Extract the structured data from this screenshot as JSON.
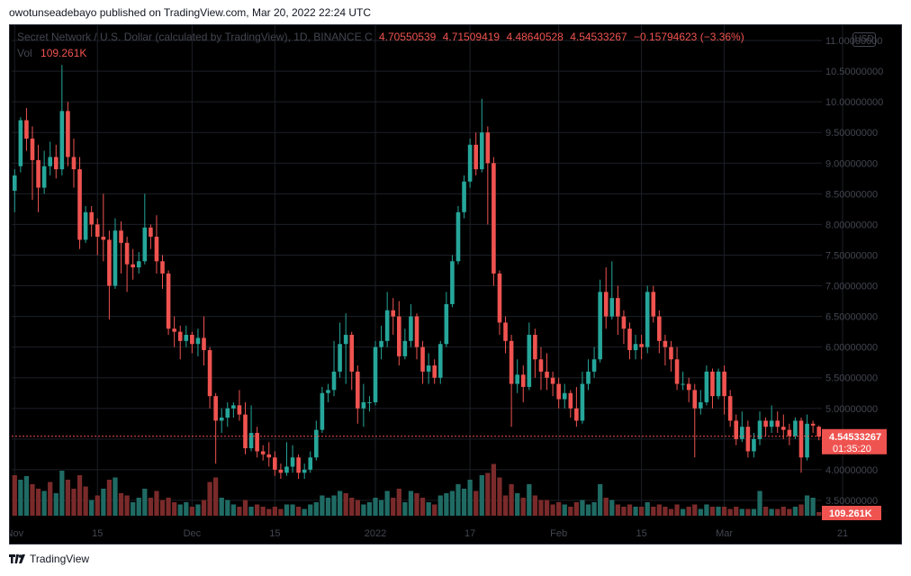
{
  "header": {
    "published_line": "owotunseadebayo published on TradingView.com, Mar 20, 2022 22:24 UTC"
  },
  "legend": {
    "symbol": "Secret Network / U.S. Dollar (calculated by TradingView), 1D, BINANCE",
    "marker": "C",
    "open": "4.70550539",
    "high": "4.71509419",
    "low": "4.48640528",
    "close": "4.54533267",
    "change": "−0.15794623 (−3.36%)",
    "vol_label": "Vol",
    "vol_value": "109.261K"
  },
  "currency_button": "USD",
  "price_tag": {
    "price": "4.54533267",
    "countdown": "01:35:20"
  },
  "volume_tag": "109.261K",
  "footer": {
    "brand": "TradingView"
  },
  "colors": {
    "up": "#26a69a",
    "down": "#ef5350",
    "up_vol": "#1f6b64",
    "down_vol": "#7a2a2a",
    "grid": "#1c1f27"
  },
  "chart_data": {
    "type": "candlestick",
    "interval": "1D",
    "exchange": "BINANCE",
    "y_axis": {
      "range": [
        3.25,
        11.25
      ],
      "ticks": [
        "11.00000000",
        "10.50000000",
        "10.00000000",
        "9.50000000",
        "9.00000000",
        "8.50000000",
        "8.00000000",
        "7.50000000",
        "7.00000000",
        "6.50000000",
        "6.00000000",
        "5.50000000",
        "5.00000000",
        "4.50000000",
        "4.00000000",
        "3.50000000"
      ]
    },
    "x_ticks": [
      {
        "label": "Nov",
        "index": 0
      },
      {
        "label": "15",
        "index": 14
      },
      {
        "label": "Dec",
        "index": 30
      },
      {
        "label": "15",
        "index": 44
      },
      {
        "label": "2022",
        "index": 61
      },
      {
        "label": "17",
        "index": 77
      },
      {
        "label": "Feb",
        "index": 92
      },
      {
        "label": "15",
        "index": 106
      },
      {
        "label": "Mar",
        "index": 120
      },
      {
        "label": "21",
        "index": 140
      }
    ],
    "last_price": 4.54533267,
    "candles": [
      [
        8.55,
        8.8,
        8.2,
        8.9
      ],
      [
        8.95,
        9.7,
        8.85,
        9.75
      ],
      [
        9.7,
        9.4,
        9.2,
        9.9
      ],
      [
        9.4,
        9.05,
        8.4,
        9.6
      ],
      [
        9.05,
        8.6,
        8.2,
        9.3
      ],
      [
        8.6,
        8.95,
        8.5,
        9.2
      ],
      [
        8.95,
        9.1,
        8.8,
        9.35
      ],
      [
        9.1,
        8.9,
        8.75,
        9.3
      ],
      [
        8.9,
        9.85,
        8.8,
        10.6
      ],
      [
        9.85,
        9.1,
        8.95,
        10.0
      ],
      [
        9.1,
        8.9,
        8.6,
        9.4
      ],
      [
        8.9,
        7.75,
        7.6,
        9.1
      ],
      [
        7.75,
        8.2,
        7.7,
        8.3
      ],
      [
        8.2,
        8.0,
        7.8,
        8.3
      ],
      [
        8.0,
        7.8,
        7.5,
        8.1
      ],
      [
        7.8,
        7.75,
        7.4,
        8.5
      ],
      [
        7.75,
        7.0,
        6.45,
        7.9
      ],
      [
        7.0,
        7.9,
        6.95,
        8.1
      ],
      [
        7.9,
        7.7,
        7.2,
        8.05
      ],
      [
        7.7,
        7.35,
        6.9,
        7.8
      ],
      [
        7.35,
        7.3,
        7.1,
        7.6
      ],
      [
        7.3,
        7.4,
        7.2,
        7.55
      ],
      [
        7.4,
        7.95,
        7.35,
        8.5
      ],
      [
        7.95,
        7.8,
        7.6,
        8.0
      ],
      [
        7.8,
        7.4,
        7.2,
        8.15
      ],
      [
        7.4,
        7.2,
        6.95,
        7.5
      ],
      [
        7.2,
        6.3,
        6.2,
        7.25
      ],
      [
        6.3,
        6.25,
        6.0,
        6.5
      ],
      [
        6.25,
        6.1,
        5.8,
        6.35
      ],
      [
        6.1,
        6.2,
        6.0,
        6.35
      ],
      [
        6.2,
        6.05,
        5.9,
        6.25
      ],
      [
        6.05,
        6.15,
        5.85,
        6.3
      ],
      [
        6.15,
        5.95,
        5.7,
        6.5
      ],
      [
        5.95,
        5.2,
        5.0,
        6.0
      ],
      [
        5.2,
        4.8,
        4.1,
        5.25
      ],
      [
        4.8,
        4.85,
        4.6,
        5.0
      ],
      [
        4.85,
        5.0,
        4.7,
        5.1
      ],
      [
        5.0,
        5.05,
        4.85,
        5.1
      ],
      [
        5.05,
        4.9,
        4.8,
        5.3
      ],
      [
        4.9,
        4.35,
        4.25,
        5.1
      ],
      [
        4.35,
        4.6,
        4.3,
        5.05
      ],
      [
        4.6,
        4.3,
        4.2,
        4.7
      ],
      [
        4.3,
        4.25,
        4.15,
        4.4
      ],
      [
        4.25,
        4.2,
        4.05,
        4.45
      ],
      [
        4.2,
        4.0,
        3.9,
        4.3
      ],
      [
        4.0,
        3.95,
        3.85,
        4.1
      ],
      [
        3.95,
        4.05,
        3.9,
        4.45
      ],
      [
        4.05,
        4.2,
        3.95,
        4.4
      ],
      [
        4.2,
        3.95,
        3.85,
        4.25
      ],
      [
        3.95,
        4.0,
        3.85,
        4.1
      ],
      [
        4.0,
        4.2,
        3.95,
        4.3
      ],
      [
        4.2,
        4.65,
        4.15,
        4.8
      ],
      [
        4.65,
        5.25,
        4.6,
        5.35
      ],
      [
        5.25,
        5.3,
        5.1,
        5.4
      ],
      [
        5.3,
        5.6,
        5.2,
        6.1
      ],
      [
        5.6,
        6.05,
        5.5,
        6.4
      ],
      [
        6.05,
        6.2,
        5.4,
        6.55
      ],
      [
        6.2,
        5.6,
        5.3,
        6.25
      ],
      [
        5.6,
        5.0,
        4.75,
        5.7
      ],
      [
        5.0,
        5.1,
        4.7,
        5.4
      ],
      [
        5.1,
        5.1,
        4.95,
        5.2
      ],
      [
        5.1,
        6.0,
        5.05,
        6.1
      ],
      [
        6.0,
        6.1,
        5.8,
        6.35
      ],
      [
        6.1,
        6.6,
        6.0,
        6.9
      ],
      [
        6.6,
        6.5,
        6.2,
        6.8
      ],
      [
        6.5,
        5.85,
        5.7,
        6.75
      ],
      [
        5.85,
        6.1,
        5.8,
        6.3
      ],
      [
        6.1,
        6.5,
        6.0,
        6.7
      ],
      [
        6.5,
        6.0,
        5.8,
        6.55
      ],
      [
        6.0,
        5.6,
        5.4,
        6.1
      ],
      [
        5.6,
        5.7,
        5.4,
        5.9
      ],
      [
        5.7,
        5.5,
        5.4,
        5.8
      ],
      [
        5.5,
        6.05,
        5.4,
        6.1
      ],
      [
        6.05,
        6.7,
        6.0,
        6.9
      ],
      [
        6.7,
        7.4,
        6.65,
        7.5
      ],
      [
        7.4,
        8.2,
        7.35,
        8.3
      ],
      [
        8.2,
        8.7,
        8.1,
        8.8
      ],
      [
        8.7,
        9.3,
        8.6,
        9.4
      ],
      [
        9.3,
        8.9,
        8.8,
        9.5
      ],
      [
        8.9,
        9.5,
        8.85,
        10.05
      ],
      [
        9.5,
        9.0,
        8.0,
        9.6
      ],
      [
        9.0,
        7.2,
        7.0,
        9.1
      ],
      [
        7.2,
        6.4,
        6.2,
        7.25
      ],
      [
        6.4,
        6.1,
        5.9,
        6.5
      ],
      [
        6.1,
        5.4,
        4.7,
        6.2
      ],
      [
        5.4,
        5.55,
        5.25,
        5.8
      ],
      [
        5.55,
        5.35,
        5.1,
        5.7
      ],
      [
        5.35,
        6.2,
        5.3,
        6.4
      ],
      [
        6.2,
        5.8,
        5.5,
        6.3
      ],
      [
        5.8,
        5.6,
        5.3,
        6.0
      ],
      [
        5.6,
        5.5,
        5.3,
        5.9
      ],
      [
        5.5,
        5.4,
        5.2,
        5.6
      ],
      [
        5.4,
        5.15,
        5.0,
        5.5
      ],
      [
        5.15,
        5.25,
        5.0,
        5.4
      ],
      [
        5.25,
        5.0,
        4.85,
        5.3
      ],
      [
        5.0,
        4.8,
        4.7,
        5.35
      ],
      [
        4.8,
        5.4,
        4.75,
        5.6
      ],
      [
        5.4,
        5.6,
        5.3,
        5.8
      ],
      [
        5.6,
        5.8,
        5.5,
        6.0
      ],
      [
        5.8,
        6.9,
        5.75,
        7.1
      ],
      [
        6.9,
        6.5,
        6.3,
        7.3
      ],
      [
        6.5,
        6.8,
        6.45,
        7.4
      ],
      [
        6.8,
        6.5,
        6.2,
        7.0
      ],
      [
        6.5,
        6.3,
        6.05,
        6.6
      ],
      [
        6.3,
        5.95,
        5.8,
        6.4
      ],
      [
        5.95,
        6.05,
        5.8,
        6.2
      ],
      [
        6.05,
        6.0,
        5.8,
        6.2
      ],
      [
        6.0,
        6.9,
        5.9,
        7.0
      ],
      [
        6.9,
        6.5,
        6.4,
        7.0
      ],
      [
        6.5,
        6.1,
        5.9,
        6.6
      ],
      [
        6.1,
        6.0,
        5.7,
        6.2
      ],
      [
        6.0,
        5.8,
        5.6,
        6.1
      ],
      [
        5.8,
        5.4,
        5.3,
        6.0
      ],
      [
        5.4,
        5.4,
        5.3,
        5.6
      ],
      [
        5.4,
        5.3,
        5.1,
        5.5
      ],
      [
        5.3,
        5.0,
        4.2,
        5.4
      ],
      [
        5.0,
        5.1,
        4.9,
        5.3
      ],
      [
        5.1,
        5.6,
        5.05,
        5.7
      ],
      [
        5.6,
        5.2,
        5.0,
        5.65
      ],
      [
        5.2,
        5.6,
        5.15,
        5.65
      ],
      [
        5.6,
        5.2,
        4.9,
        5.7
      ],
      [
        5.2,
        4.8,
        4.7,
        5.3
      ],
      [
        4.8,
        4.5,
        4.4,
        4.9
      ],
      [
        4.5,
        4.7,
        4.45,
        4.95
      ],
      [
        4.7,
        4.3,
        4.2,
        4.8
      ],
      [
        4.3,
        4.5,
        4.2,
        4.6
      ],
      [
        4.5,
        4.8,
        4.4,
        4.95
      ],
      [
        4.8,
        4.7,
        4.55,
        4.85
      ],
      [
        4.7,
        4.8,
        4.6,
        5.05
      ],
      [
        4.8,
        4.7,
        4.6,
        4.95
      ],
      [
        4.7,
        4.65,
        4.5,
        4.9
      ],
      [
        4.65,
        4.55,
        4.4,
        4.75
      ],
      [
        4.55,
        4.8,
        4.5,
        4.85
      ],
      [
        4.8,
        4.2,
        3.95,
        4.85
      ],
      [
        4.2,
        4.75,
        4.15,
        4.9
      ],
      [
        4.75,
        4.72,
        4.6,
        4.8
      ],
      [
        4.7,
        4.54,
        4.48,
        4.72
      ]
    ],
    "volume": [
      {
        "v": 90,
        "up": false
      },
      {
        "v": 80,
        "up": true
      },
      {
        "v": 88,
        "up": true
      },
      {
        "v": 70,
        "up": false
      },
      {
        "v": 60,
        "up": false
      },
      {
        "v": 55,
        "up": true
      },
      {
        "v": 75,
        "up": false
      },
      {
        "v": 50,
        "up": true
      },
      {
        "v": 100,
        "up": true
      },
      {
        "v": 80,
        "up": false
      },
      {
        "v": 60,
        "up": false
      },
      {
        "v": 90,
        "up": false
      },
      {
        "v": 65,
        "up": false
      },
      {
        "v": 35,
        "up": true
      },
      {
        "v": 45,
        "up": false
      },
      {
        "v": 60,
        "up": true
      },
      {
        "v": 80,
        "up": false
      },
      {
        "v": 85,
        "up": true
      },
      {
        "v": 50,
        "up": false
      },
      {
        "v": 45,
        "up": false
      },
      {
        "v": 30,
        "up": true
      },
      {
        "v": 40,
        "up": true
      },
      {
        "v": 60,
        "up": true
      },
      {
        "v": 40,
        "up": false
      },
      {
        "v": 55,
        "up": false
      },
      {
        "v": 35,
        "up": false
      },
      {
        "v": 40,
        "up": false
      },
      {
        "v": 30,
        "up": false
      },
      {
        "v": 25,
        "up": true
      },
      {
        "v": 30,
        "up": true
      },
      {
        "v": 20,
        "up": false
      },
      {
        "v": 25,
        "up": true
      },
      {
        "v": 35,
        "up": false
      },
      {
        "v": 75,
        "up": false
      },
      {
        "v": 85,
        "up": false
      },
      {
        "v": 40,
        "up": true
      },
      {
        "v": 35,
        "up": true
      },
      {
        "v": 25,
        "up": true
      },
      {
        "v": 20,
        "up": false
      },
      {
        "v": 35,
        "up": false
      },
      {
        "v": 20,
        "up": true
      },
      {
        "v": 25,
        "up": false
      },
      {
        "v": 20,
        "up": false
      },
      {
        "v": 15,
        "up": false
      },
      {
        "v": 20,
        "up": false
      },
      {
        "v": 15,
        "up": false
      },
      {
        "v": 25,
        "up": true
      },
      {
        "v": 25,
        "up": true
      },
      {
        "v": 20,
        "up": false
      },
      {
        "v": 15,
        "up": true
      },
      {
        "v": 25,
        "up": true
      },
      {
        "v": 30,
        "up": true
      },
      {
        "v": 45,
        "up": true
      },
      {
        "v": 40,
        "up": true
      },
      {
        "v": 45,
        "up": true
      },
      {
        "v": 55,
        "up": true
      },
      {
        "v": 50,
        "up": false
      },
      {
        "v": 40,
        "up": false
      },
      {
        "v": 35,
        "up": false
      },
      {
        "v": 25,
        "up": true
      },
      {
        "v": 30,
        "up": true
      },
      {
        "v": 40,
        "up": true
      },
      {
        "v": 35,
        "up": true
      },
      {
        "v": 55,
        "up": true
      },
      {
        "v": 40,
        "up": false
      },
      {
        "v": 60,
        "up": false
      },
      {
        "v": 30,
        "up": true
      },
      {
        "v": 55,
        "up": true
      },
      {
        "v": 50,
        "up": false
      },
      {
        "v": 40,
        "up": false
      },
      {
        "v": 30,
        "up": true
      },
      {
        "v": 25,
        "up": false
      },
      {
        "v": 45,
        "up": true
      },
      {
        "v": 50,
        "up": true
      },
      {
        "v": 55,
        "up": true
      },
      {
        "v": 70,
        "up": true
      },
      {
        "v": 60,
        "up": true
      },
      {
        "v": 80,
        "up": true
      },
      {
        "v": 55,
        "up": false
      },
      {
        "v": 90,
        "up": true
      },
      {
        "v": 95,
        "up": false
      },
      {
        "v": 115,
        "up": false
      },
      {
        "v": 85,
        "up": false
      },
      {
        "v": 45,
        "up": false
      },
      {
        "v": 70,
        "up": false
      },
      {
        "v": 50,
        "up": true
      },
      {
        "v": 40,
        "up": false
      },
      {
        "v": 70,
        "up": true
      },
      {
        "v": 45,
        "up": false
      },
      {
        "v": 35,
        "up": false
      },
      {
        "v": 35,
        "up": false
      },
      {
        "v": 25,
        "up": false
      },
      {
        "v": 30,
        "up": false
      },
      {
        "v": 25,
        "up": true
      },
      {
        "v": 20,
        "up": false
      },
      {
        "v": 30,
        "up": false
      },
      {
        "v": 35,
        "up": true
      },
      {
        "v": 25,
        "up": true
      },
      {
        "v": 30,
        "up": true
      },
      {
        "v": 70,
        "up": true
      },
      {
        "v": 40,
        "up": false
      },
      {
        "v": 35,
        "up": true
      },
      {
        "v": 25,
        "up": false
      },
      {
        "v": 20,
        "up": false
      },
      {
        "v": 25,
        "up": false
      },
      {
        "v": 20,
        "up": true
      },
      {
        "v": 20,
        "up": false
      },
      {
        "v": 30,
        "up": true
      },
      {
        "v": 20,
        "up": false
      },
      {
        "v": 25,
        "up": false
      },
      {
        "v": 20,
        "up": false
      },
      {
        "v": 15,
        "up": false
      },
      {
        "v": 25,
        "up": false
      },
      {
        "v": 15,
        "up": true
      },
      {
        "v": 20,
        "up": false
      },
      {
        "v": 25,
        "up": false
      },
      {
        "v": 15,
        "up": true
      },
      {
        "v": 25,
        "up": true
      },
      {
        "v": 20,
        "up": false
      },
      {
        "v": 20,
        "up": true
      },
      {
        "v": 20,
        "up": false
      },
      {
        "v": 15,
        "up": false
      },
      {
        "v": 20,
        "up": false
      },
      {
        "v": 15,
        "up": true
      },
      {
        "v": 15,
        "up": false
      },
      {
        "v": 15,
        "up": true
      },
      {
        "v": 55,
        "up": true
      },
      {
        "v": 20,
        "up": false
      },
      {
        "v": 15,
        "up": true
      },
      {
        "v": 15,
        "up": false
      },
      {
        "v": 20,
        "up": false
      },
      {
        "v": 15,
        "up": false
      },
      {
        "v": 20,
        "up": true
      },
      {
        "v": 25,
        "up": false
      },
      {
        "v": 45,
        "up": true
      },
      {
        "v": 40,
        "up": true
      },
      {
        "v": 8,
        "up": false
      }
    ]
  }
}
